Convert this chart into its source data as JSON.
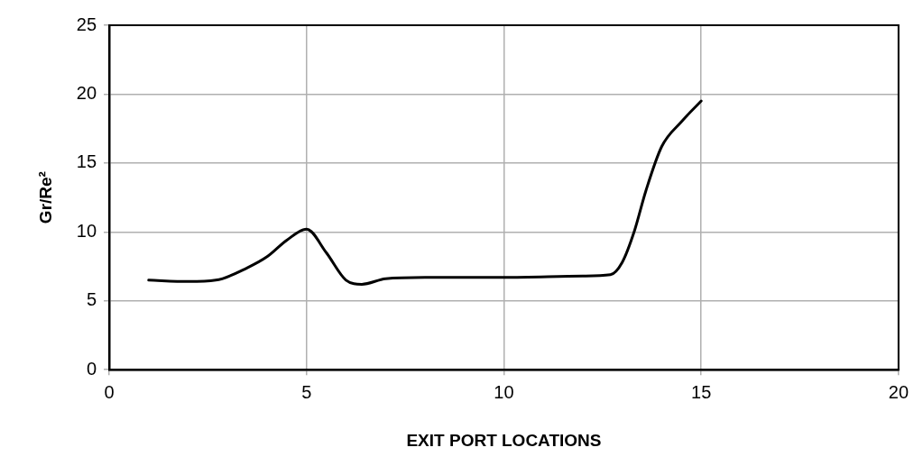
{
  "chart_data": {
    "type": "line",
    "xlabel": "EXIT PORT LOCATIONS",
    "ylabel": "Gr/Re²",
    "x": [
      1,
      2,
      2.7,
      3.5,
      4,
      4.5,
      5,
      5.5,
      6,
      6.4,
      7,
      8,
      10,
      12,
      12.7,
      13,
      13.3,
      13.6,
      14,
      14.5,
      15
    ],
    "series": [
      {
        "color": "#000000",
        "values": [
          6.5,
          6.4,
          6.5,
          7.4,
          8.2,
          9.4,
          10.2,
          8.5,
          6.5,
          6.2,
          6.6,
          6.7,
          6.7,
          6.8,
          6.9,
          7.8,
          10,
          13,
          16.2,
          18,
          19.5
        ]
      }
    ],
    "xlim": [
      0,
      20
    ],
    "xticks": [
      0,
      5,
      10,
      15,
      20
    ],
    "ylim": [
      0,
      25
    ],
    "yticks": [
      0,
      5,
      10,
      15,
      20,
      25
    ],
    "grid": true,
    "legend": false,
    "marker": "none",
    "line_style": "solid"
  }
}
